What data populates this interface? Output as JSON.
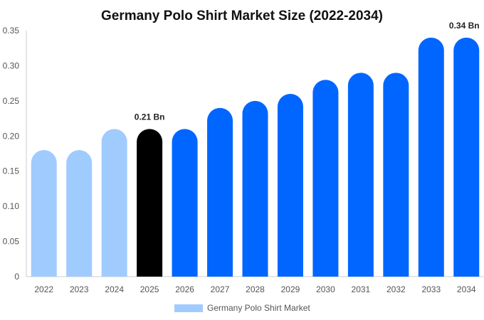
{
  "chart_data": {
    "type": "bar",
    "title": "Germany Polo Shirt Market Size (2022-2034)",
    "categories": [
      "2022",
      "2023",
      "2024",
      "2025",
      "2026",
      "2027",
      "2028",
      "2029",
      "2030",
      "2031",
      "2032",
      "2033",
      "2034"
    ],
    "series": [
      {
        "name": "Germany Polo Shirt Market",
        "values": [
          0.18,
          0.18,
          0.21,
          0.21,
          0.21,
          0.24,
          0.25,
          0.26,
          0.28,
          0.29,
          0.29,
          0.34,
          0.34
        ]
      }
    ],
    "ylim": [
      0,
      0.35
    ],
    "yticks": [
      "0",
      "0.05",
      "0.10",
      "0.15",
      "0.20",
      "0.25",
      "0.30",
      "0.35"
    ],
    "ytick_values": [
      0,
      0.05,
      0.1,
      0.15,
      0.2,
      0.25,
      0.3,
      0.35
    ],
    "data_labels": [
      {
        "category": "2025",
        "text": "0.21 Bn"
      },
      {
        "category": "2034",
        "text": "0.34 Bn"
      }
    ],
    "legend": {
      "placement": "bottom-center",
      "label": "Germany Polo Shirt Market"
    },
    "colors": {
      "historical": "#a0cbff",
      "current": "#000000",
      "forecast": "#0066ff",
      "legend_swatch": "#a0cbff"
    },
    "historical_categories": [
      "2022",
      "2023",
      "2024"
    ],
    "current_category": "2025",
    "grid": false
  }
}
